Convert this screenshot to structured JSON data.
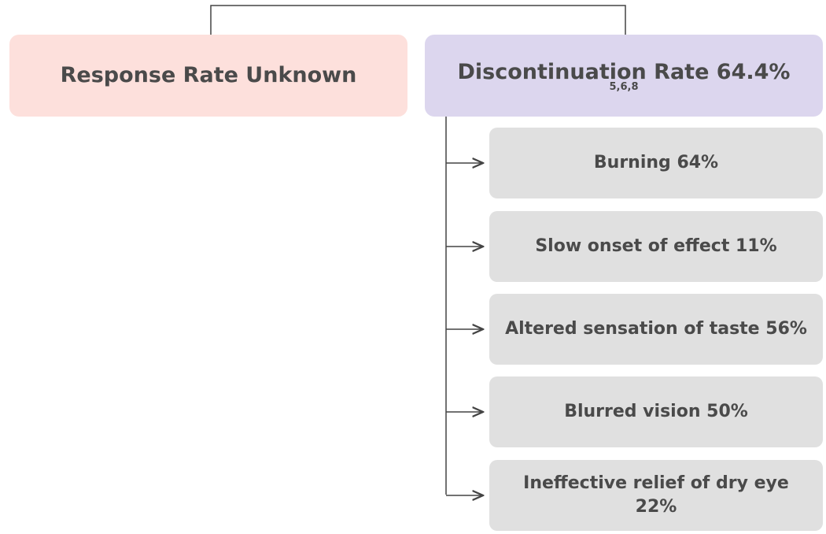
{
  "left": {
    "title": "Response Rate Unknown"
  },
  "right": {
    "title": "Discontinuation Rate 64.4%",
    "refs": "5,6,8"
  },
  "items": [
    "Burning 64%",
    "Slow onset of effect 11%",
    "Altered sensation of taste 56%",
    "Blurred vision 50%",
    "Ineffective relief of dry eye 22%"
  ]
}
